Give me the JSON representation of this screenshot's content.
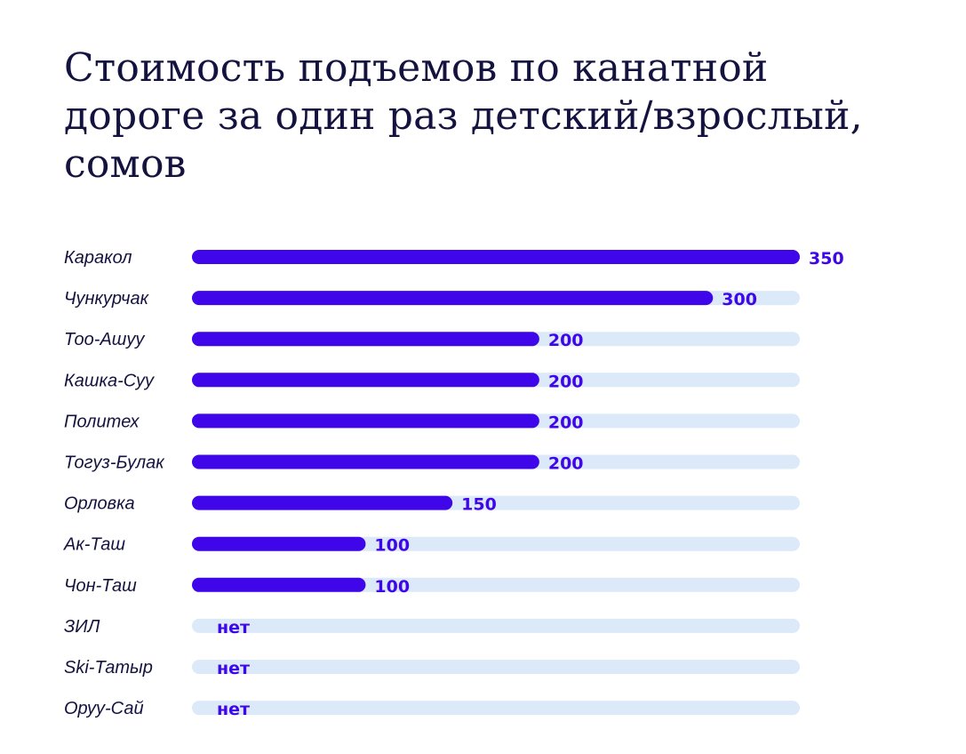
{
  "chart_data": {
    "type": "bar",
    "orientation": "horizontal",
    "title": "Стоимость подъемов по канатной дороге за один раз детский/взрослый, сомов",
    "categories": [
      "Каракол",
      "Чункурчак",
      "Тоо-Ашуу",
      "Кашка-Суу",
      "Политех",
      "Тогуз-Булак",
      "Орловка",
      "Ак-Таш",
      "Чон-Таш",
      "ЗИЛ",
      "Ski-Татыр",
      "Оруу-Сай"
    ],
    "values": [
      350,
      300,
      200,
      200,
      200,
      200,
      150,
      100,
      100,
      null,
      null,
      null
    ],
    "value_labels": [
      "350",
      "300",
      "200",
      "200",
      "200",
      "200",
      "150",
      "100",
      "100",
      "нет",
      "нет",
      "нет"
    ],
    "xlim": [
      0,
      350
    ],
    "grid": false,
    "legend": "none",
    "colors": {
      "bar": "#3f06e9",
      "track": "#dbe9f8",
      "value_text": "#3f06e9",
      "label_text": "#14133f",
      "title_text": "#14133f"
    }
  }
}
